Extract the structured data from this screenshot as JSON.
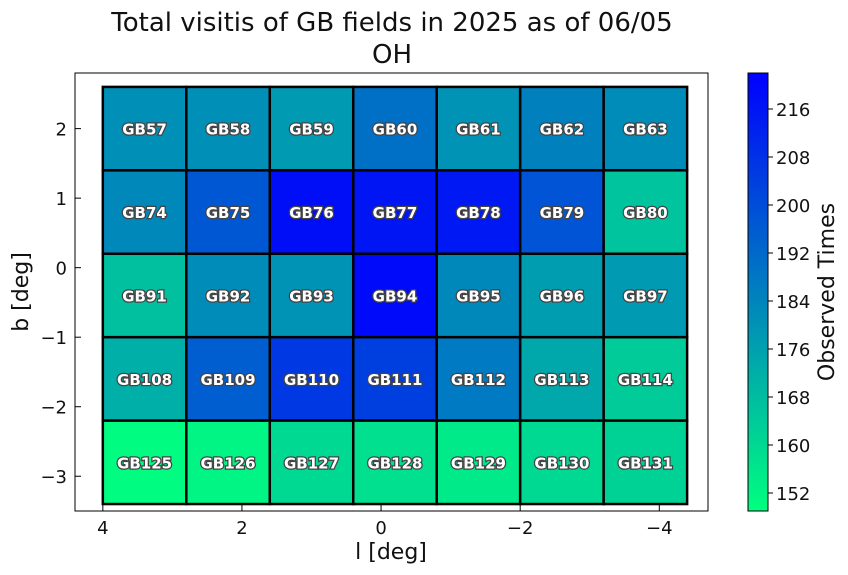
{
  "chart_data": {
    "type": "heatmap",
    "title_line1": "Total visitis of GB fields in 2025 as of 06/05",
    "title_line2": "OH",
    "xlabel": "l [deg]",
    "ylabel": "b [deg]",
    "colorbar_label": "Observed Times",
    "xlim": [
      4.4,
      -4.7
    ],
    "ylim": [
      -3.5,
      2.8
    ],
    "x_ticks": [
      4,
      2,
      0,
      -2,
      -4
    ],
    "x_tick_labels": [
      "4",
      "2",
      "0",
      "−2",
      "−4"
    ],
    "y_ticks": [
      2,
      1,
      0,
      -1,
      -2,
      -3
    ],
    "y_tick_labels": [
      "2",
      "1",
      "0",
      "−1",
      "−2",
      "−3"
    ],
    "colorbar_range": [
      149,
      222
    ],
    "colorbar_ticks": [
      152,
      160,
      168,
      176,
      184,
      192,
      200,
      208,
      216
    ],
    "colormap": [
      "#00ff7f",
      "#0000ff"
    ],
    "col_l_edges": [
      4.0,
      2.8,
      1.6,
      0.4,
      -0.8,
      -2.0,
      -3.2,
      -4.4
    ],
    "row_b_edges": [
      2.6,
      1.4,
      0.2,
      -1.0,
      -2.2,
      -3.4
    ],
    "rows": [
      {
        "fields": [
          "GB57",
          "GB58",
          "GB59",
          "GB60",
          "GB61",
          "GB62",
          "GB63"
        ],
        "values": [
          181,
          181,
          178,
          190,
          180,
          185,
          182
        ]
      },
      {
        "fields": [
          "GB74",
          "GB75",
          "GB76",
          "GB77",
          "GB78",
          "GB79",
          "GB80"
        ],
        "values": [
          183,
          197,
          218,
          216,
          215,
          198,
          166
        ]
      },
      {
        "fields": [
          "GB91",
          "GB92",
          "GB93",
          "GB94",
          "GB95",
          "GB96",
          "GB97"
        ],
        "values": [
          167,
          182,
          180,
          219,
          183,
          177,
          178
        ]
      },
      {
        "fields": [
          "GB108",
          "GB109",
          "GB110",
          "GB111",
          "GB112",
          "GB113",
          "GB114"
        ],
        "values": [
          172,
          195,
          206,
          204,
          187,
          174,
          164
        ]
      },
      {
        "fields": [
          "GB125",
          "GB126",
          "GB127",
          "GB128",
          "GB129",
          "GB130",
          "GB131"
        ],
        "values": [
          150,
          152,
          160,
          158,
          155,
          160,
          162
        ]
      }
    ]
  }
}
